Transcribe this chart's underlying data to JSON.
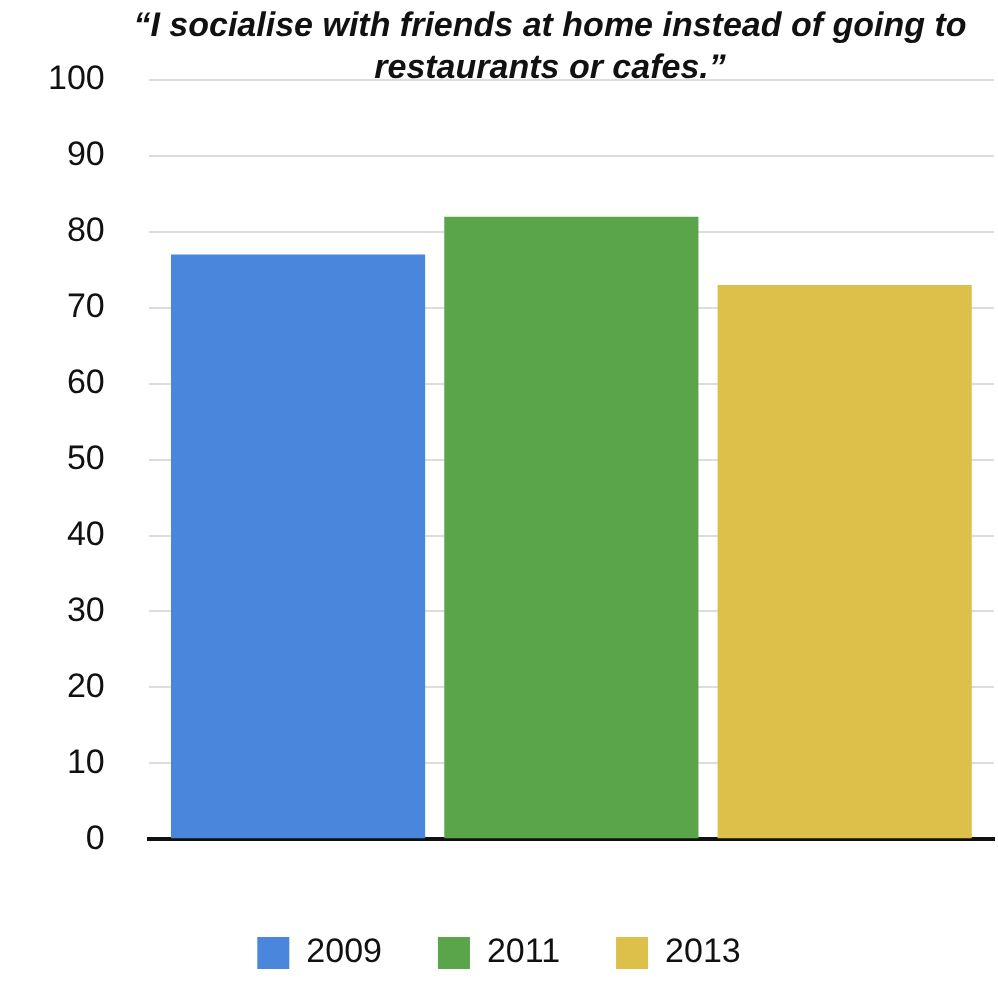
{
  "chart_data": {
    "type": "bar",
    "title": "“I socialise with friends at home instead of going to restaurants or cafes.”",
    "categories": [
      null
    ],
    "series": [
      {
        "name": "2009",
        "color": "#4a86dc",
        "values": [
          77
        ]
      },
      {
        "name": "2011",
        "color": "#5aa44a",
        "values": [
          82
        ]
      },
      {
        "name": "2013",
        "color": "#dcc04a",
        "values": [
          73
        ]
      }
    ],
    "ylim": [
      0,
      100
    ],
    "yticks": [
      0,
      10,
      20,
      30,
      40,
      50,
      60,
      70,
      80,
      90,
      100
    ],
    "grid": "y",
    "legend": "bottom"
  }
}
